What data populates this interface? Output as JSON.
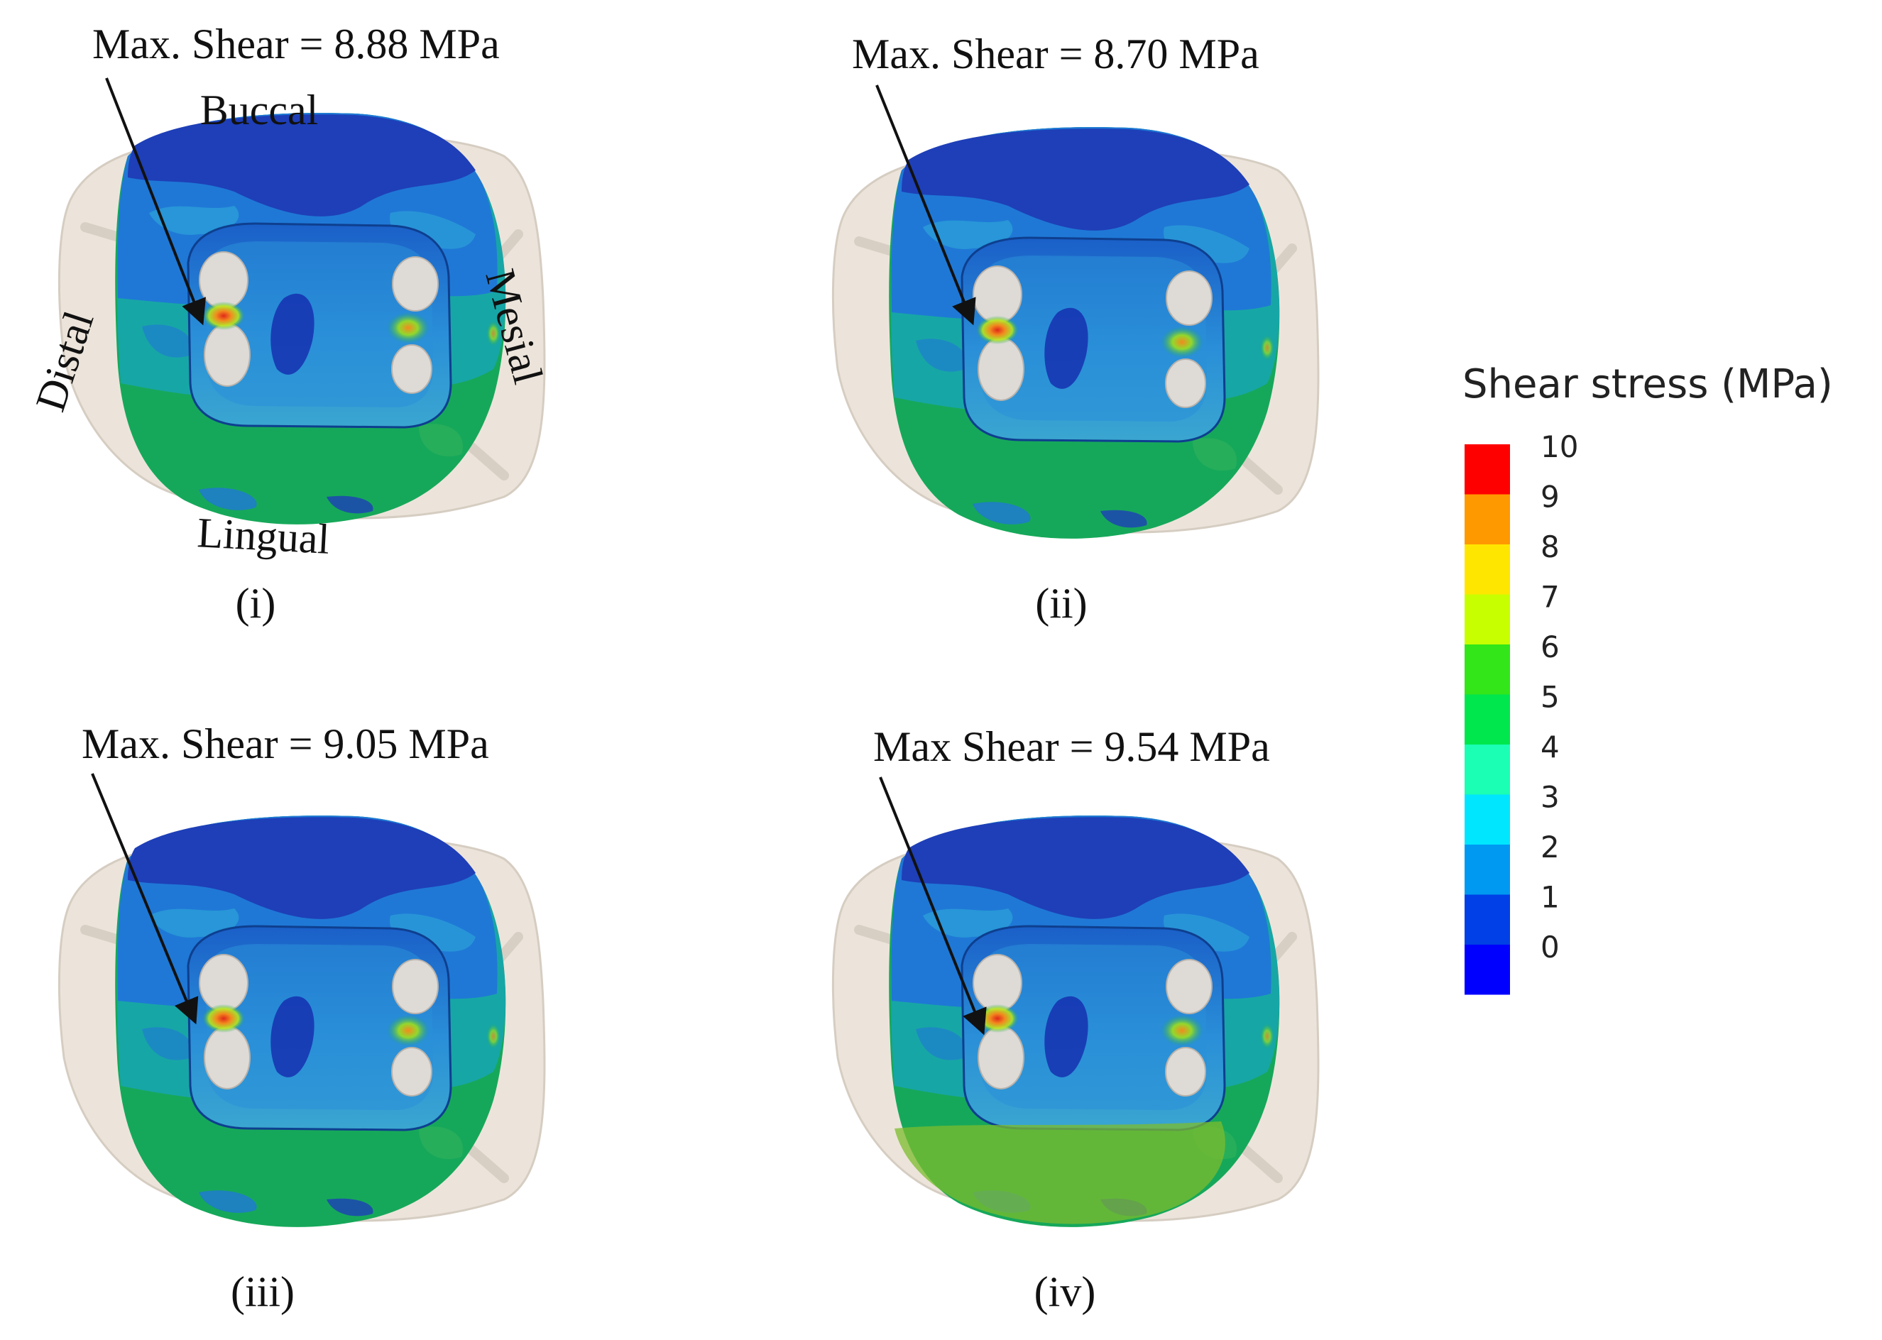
{
  "panels": [
    {
      "label": "(i)",
      "max_shear_label": "Max. Shear = 8.88 MPa",
      "orientation": {
        "buccal": "Buccal",
        "lingual": "Lingual",
        "distal": "Distal",
        "mesial": "Mesial"
      },
      "variant": 0
    },
    {
      "label": "(ii)",
      "max_shear_label": "Max. Shear = 8.70 MPa",
      "variant": 1
    },
    {
      "label": "(iii)",
      "max_shear_label": "Max. Shear = 9.05 MPa",
      "variant": 2
    },
    {
      "label": "(iv)",
      "max_shear_label": "Max Shear = 9.54 MPa",
      "variant": 3
    }
  ],
  "legend": {
    "title": "Shear stress (MPa)",
    "ticks": [
      "10",
      "9",
      "8",
      "7",
      "6",
      "5",
      "4",
      "3",
      "2",
      "1",
      "0"
    ],
    "colors": [
      "#ff0000",
      "#ff9900",
      "#ffe600",
      "#c8ff00",
      "#33e61a",
      "#00e64d",
      "#1affb3",
      "#00e6ff",
      "#0099f2",
      "#0040e6",
      "#0000ff"
    ]
  },
  "palette": {
    "tooth": "#ece4da",
    "tooth_edge": "#d6cdc2",
    "dark_blue": "#1e3fb8",
    "mid_blue": "#1f78d6",
    "light_blue": "#2a9bd8",
    "teal": "#17a6a6",
    "green": "#16a85a",
    "olive": "#7cbc2e",
    "hole": "#dedad6",
    "hot_orange": "#f28a1e",
    "hot_red": "#e0281a"
  }
}
